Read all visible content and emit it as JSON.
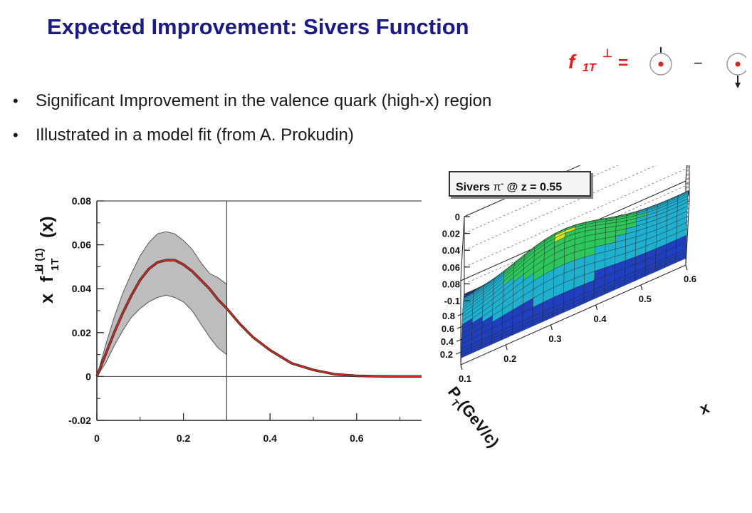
{
  "slide": {
    "title": "Expected Improvement: Sivers Function",
    "formula": {
      "symbol": "f",
      "subscript": "1T",
      "superscript": "⊥",
      "equals": "=",
      "minus": "−"
    },
    "bullets": [
      "Significant Improvement in the valence quark (high-x) region",
      "Illustrated in a model fit  (from A. Prokudin)"
    ]
  },
  "chart_data": [
    {
      "type": "line",
      "title": "",
      "xlabel": "",
      "ylabel": "x f1T⊥d (1)(x)",
      "ylabel_parts": {
        "x": "x",
        "f": "f",
        "sup": "d (1)",
        "sub": "1T",
        "perp": "⊥",
        "arg": "(x)"
      },
      "xlim": [
        0,
        0.75
      ],
      "ylim": [
        -0.02,
        0.08
      ],
      "xticks": [
        0,
        0.2,
        0.4,
        0.6
      ],
      "yticks": [
        -0.02,
        0,
        0.02,
        0.04,
        0.06,
        0.08
      ],
      "xtick_labels": [
        "0",
        "0.2",
        "0.4",
        "0.6"
      ],
      "ytick_labels": [
        "-0.02",
        "0",
        "0.02",
        "0.04",
        "0.06",
        "0.08"
      ],
      "vertical_line_x": 0.3,
      "horizontal_line_y": 0,
      "series": [
        {
          "role": "central",
          "color": "#d62a1e",
          "x": [
            0,
            0.02,
            0.04,
            0.06,
            0.08,
            0.1,
            0.12,
            0.14,
            0.16,
            0.18,
            0.2,
            0.22,
            0.24,
            0.26,
            0.28,
            0.3,
            0.33,
            0.36,
            0.4,
            0.45,
            0.5,
            0.55,
            0.6,
            0.65,
            0.7,
            0.75
          ],
          "y": [
            0,
            0.01,
            0.02,
            0.029,
            0.037,
            0.044,
            0.049,
            0.052,
            0.053,
            0.053,
            0.051,
            0.048,
            0.044,
            0.04,
            0.035,
            0.031,
            0.024,
            0.018,
            0.012,
            0.006,
            0.003,
            0.001,
            0.0003,
            0.0001,
            0,
            0
          ]
        }
      ],
      "band": {
        "color": "#bdbdbd",
        "x": [
          0,
          0.02,
          0.04,
          0.06,
          0.08,
          0.1,
          0.12,
          0.14,
          0.16,
          0.18,
          0.2,
          0.22,
          0.24,
          0.26,
          0.28,
          0.3
        ],
        "upper": [
          0,
          0.014,
          0.027,
          0.038,
          0.047,
          0.055,
          0.061,
          0.065,
          0.066,
          0.065,
          0.062,
          0.058,
          0.052,
          0.047,
          0.045,
          0.042
        ],
        "lower": [
          0,
          0.006,
          0.014,
          0.021,
          0.027,
          0.031,
          0.034,
          0.036,
          0.037,
          0.036,
          0.034,
          0.03,
          0.024,
          0.018,
          0.013,
          0.01
        ]
      }
    },
    {
      "type": "surface",
      "title": "Sivers π⁻ @ z = 0.55",
      "label_parts": {
        "name": "Sivers",
        "pi": "π",
        "charge": "-",
        "rest": "@ z = 0.55"
      },
      "xlabel": "x",
      "ylabel": "PT (GeV/c)",
      "ylabel_parts": {
        "p": "P",
        "sub": "T",
        "rest": " (GeV/c)"
      },
      "xtick_labels": [
        "0.1",
        "0.2",
        "0.3",
        "0.4",
        "0.5",
        "0.6"
      ],
      "ytick_labels": [
        "0.2",
        "0.4",
        "0.6",
        "0.8"
      ],
      "ztick_labels": [
        "0",
        "0.02",
        "0.04",
        "0.06",
        "0.08",
        "-0.1"
      ],
      "xlim": [
        0.1,
        0.6
      ],
      "ylim": [
        0.1,
        0.9
      ],
      "zlim": [
        -0.1,
        0
      ],
      "colorscale": [
        "#1f3fbf",
        "#1fb0d0",
        "#2ec65a",
        "#d8e020",
        "#f08a1a",
        "#d21e1e"
      ]
    }
  ]
}
